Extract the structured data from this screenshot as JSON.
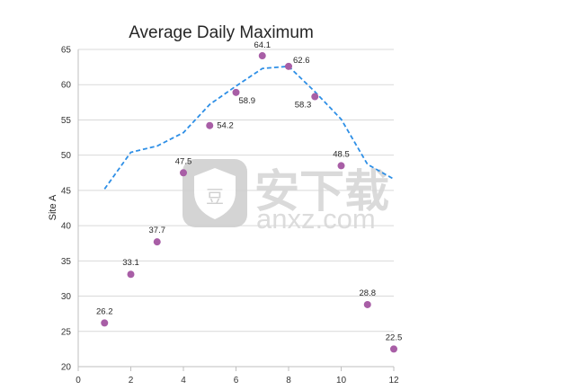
{
  "chart_data": {
    "type": "scatter",
    "title": "Average Daily Maximum",
    "ylabel": "Site A",
    "xlabel": "",
    "xlim": [
      0,
      12
    ],
    "ylim": [
      20,
      65
    ],
    "x_ticks": [
      0,
      2,
      4,
      6,
      8,
      10,
      12
    ],
    "y_ticks": [
      20,
      25,
      30,
      35,
      40,
      45,
      50,
      55,
      60,
      65
    ],
    "grid": "horizontal",
    "legend": "none",
    "series": [
      {
        "type": "scatter",
        "color": "#a85ea6",
        "x": [
          1,
          2,
          3,
          4,
          5,
          6,
          7,
          8,
          9,
          10,
          11,
          12
        ],
        "y": [
          26.2,
          33.1,
          37.7,
          47.5,
          54.2,
          58.9,
          64.1,
          62.6,
          58.3,
          48.5,
          28.8,
          22.5
        ],
        "labels": [
          "26.2",
          "33.1",
          "37.7",
          "47.5",
          "54.2",
          "58.9",
          "64.1",
          "62.6",
          "58.3",
          "48.5",
          "28.8",
          "22.5"
        ]
      },
      {
        "type": "line",
        "style": "dashed",
        "color": "#2e8fe6",
        "x": [
          1,
          2,
          3,
          4,
          5,
          6,
          7,
          8,
          9,
          10,
          11,
          12
        ],
        "y": [
          45.2,
          50.4,
          51.3,
          53.2,
          57.2,
          59.8,
          62.3,
          62.6,
          59.0,
          55.1,
          48.7,
          46.6
        ]
      }
    ]
  },
  "watermark": {
    "text": "安下载",
    "subtext": "anxz.com",
    "icon": "shield-lock-icon"
  }
}
